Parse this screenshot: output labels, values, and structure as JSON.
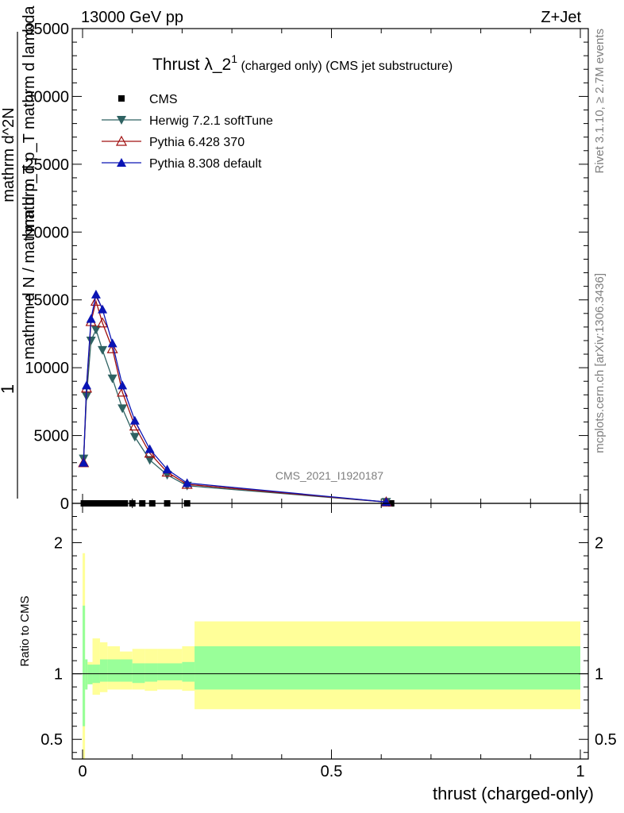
{
  "header": {
    "left": "13000 GeV pp",
    "right": "Z+Jet"
  },
  "side_text": {
    "rivet": "Rivet 3.1.10, ≥ 2.7M events",
    "mcplots": "mcplots.cern.ch [arXiv:1306.3436]"
  },
  "watermark": "CMS_2021_I1920187",
  "chart_data": [
    {
      "type": "line",
      "title_main": "Thrust λ_2",
      "title_sup": "1",
      "title_rest": " (charged only) (CMS jet substructure)",
      "ylabel_parts": [
        "1",
        "mathrm d N / mathrm d p_T",
        "mathrm d^2N",
        "mathrm d p_T mathrm d lambda"
      ],
      "ylim": [
        0,
        35000
      ],
      "xlim": [
        -0.02,
        1.0
      ],
      "y_ticks": [
        0,
        5000,
        10000,
        15000,
        20000,
        25000,
        30000,
        35000
      ],
      "y_tick_labels": [
        "0",
        "5000",
        "10000",
        "15000",
        "20000",
        "25000",
        "30000",
        "35000"
      ],
      "legend_position": "top-left",
      "series": [
        {
          "name": "CMS",
          "color": "#000000",
          "marker": "square",
          "x": [
            0.0025,
            0.0075,
            0.0125,
            0.0175,
            0.0225,
            0.0275,
            0.0325,
            0.0375,
            0.045,
            0.055,
            0.065,
            0.075,
            0.085,
            0.1,
            0.12,
            0.14,
            0.17,
            0.21,
            0.62
          ],
          "y": [
            0,
            0,
            0,
            0,
            0,
            0,
            0,
            0,
            0,
            0,
            0,
            0,
            0,
            0,
            0,
            0,
            0,
            0,
            0
          ]
        },
        {
          "name": "Herwig 7.2.1 softTune",
          "color": "#2e6262",
          "marker": "triangle-down",
          "x": [
            0.002,
            0.008,
            0.017,
            0.027,
            0.04,
            0.06,
            0.08,
            0.105,
            0.135,
            0.17,
            0.21,
            0.61
          ],
          "y": [
            3300,
            7900,
            12000,
            12800,
            11300,
            9200,
            7000,
            4900,
            3200,
            2100,
            1300,
            100
          ]
        },
        {
          "name": "Pythia 6.428 370",
          "color": "#a01010",
          "marker": "triangle-up-open",
          "x": [
            0.002,
            0.008,
            0.017,
            0.027,
            0.04,
            0.06,
            0.08,
            0.105,
            0.135,
            0.17,
            0.21,
            0.61
          ],
          "y": [
            3000,
            8500,
            13400,
            14900,
            13300,
            11400,
            8200,
            5700,
            3700,
            2300,
            1400,
            100
          ]
        },
        {
          "name": "Pythia 8.308 default",
          "color": "#0a14b4",
          "marker": "triangle-up",
          "x": [
            0.002,
            0.008,
            0.017,
            0.027,
            0.04,
            0.06,
            0.08,
            0.105,
            0.135,
            0.17,
            0.21,
            0.61
          ],
          "y": [
            3000,
            8700,
            13600,
            15400,
            14300,
            11800,
            8700,
            6100,
            4000,
            2500,
            1500,
            100
          ]
        }
      ]
    },
    {
      "type": "area",
      "ylabel": "Ratio to CMS",
      "xlabel": "thrust (charged-only)",
      "ylim": [
        0.35,
        2.3
      ],
      "y_ticks": [
        0.5,
        1,
        2
      ],
      "y_tick_labels": [
        "0.5",
        "1",
        "2"
      ],
      "x_ticks": [
        0,
        0.5,
        1
      ],
      "x_tick_labels": [
        "0",
        "0.5",
        "1"
      ],
      "reference_line": 1,
      "bands": {
        "x_edges": [
          0.0,
          0.005,
          0.01,
          0.02,
          0.035,
          0.05,
          0.075,
          0.1,
          0.125,
          0.15,
          0.2,
          0.225,
          1.0
        ],
        "stat_low": [
          0.6,
          0.88,
          0.92,
          0.93,
          0.94,
          0.94,
          0.94,
          0.93,
          0.94,
          0.95,
          0.94,
          0.88
        ],
        "stat_high": [
          1.52,
          1.11,
          1.07,
          1.07,
          1.11,
          1.11,
          1.11,
          1.08,
          1.08,
          1.08,
          1.09,
          1.21
        ],
        "syst_low": [
          0.35,
          0.9,
          0.92,
          0.84,
          0.86,
          0.88,
          0.88,
          0.88,
          0.87,
          0.88,
          0.87,
          0.73
        ],
        "syst_high": [
          1.92,
          1.07,
          1.09,
          1.27,
          1.24,
          1.21,
          1.17,
          1.19,
          1.19,
          1.19,
          1.21,
          1.4
        ],
        "stat_color": "#99ff99",
        "syst_color": "#ffff99"
      }
    }
  ]
}
